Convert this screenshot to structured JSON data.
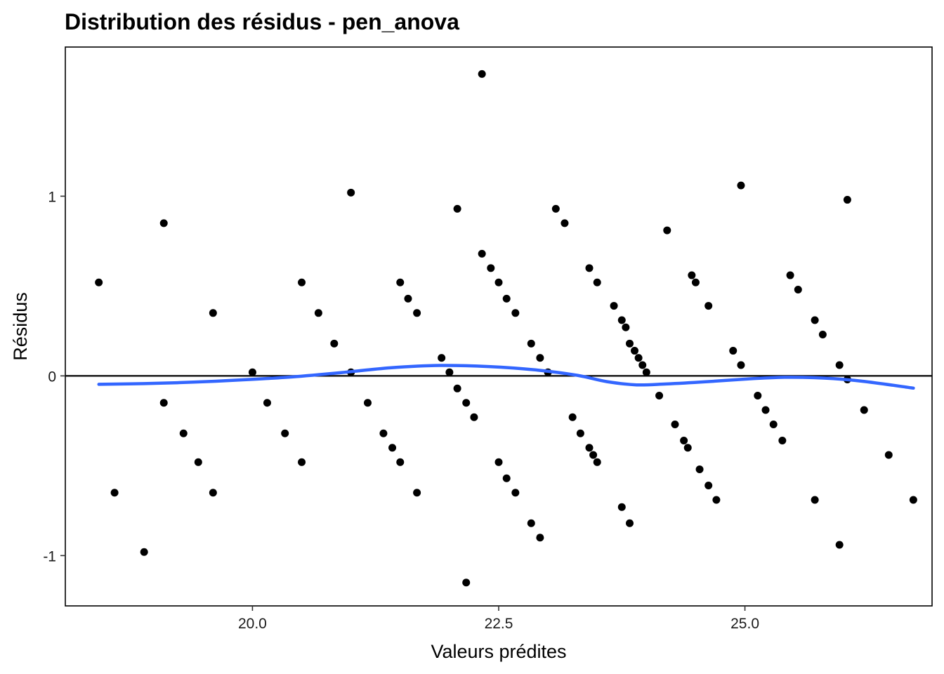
{
  "chart_data": {
    "type": "scatter",
    "title": "Distribution des résidus - pen_anova",
    "xlabel": "Valeurs prédites",
    "ylabel": "Résidus",
    "xlim": [
      18.1,
      26.9
    ],
    "ylim": [
      -1.28,
      1.83
    ],
    "xticks": [
      20.0,
      22.5,
      25.0
    ],
    "xtick_labels": [
      "20.0",
      "22.5",
      "25.0"
    ],
    "yticks": [
      -1,
      0,
      1
    ],
    "ytick_labels": [
      "-1",
      "0",
      "1"
    ],
    "grid": false,
    "reference_line_y": 0,
    "points": [
      {
        "x": 18.44,
        "y": 0.52
      },
      {
        "x": 18.6,
        "y": -0.65
      },
      {
        "x": 18.9,
        "y": -0.98
      },
      {
        "x": 19.1,
        "y": 0.85
      },
      {
        "x": 19.1,
        "y": -0.15
      },
      {
        "x": 19.3,
        "y": -0.32
      },
      {
        "x": 19.45,
        "y": -0.48
      },
      {
        "x": 19.6,
        "y": 0.35
      },
      {
        "x": 19.6,
        "y": -0.65
      },
      {
        "x": 20.0,
        "y": 0.02
      },
      {
        "x": 20.15,
        "y": -0.15
      },
      {
        "x": 20.33,
        "y": -0.32
      },
      {
        "x": 20.5,
        "y": 0.52
      },
      {
        "x": 20.5,
        "y": -0.48
      },
      {
        "x": 20.67,
        "y": 0.35
      },
      {
        "x": 20.83,
        "y": 0.18
      },
      {
        "x": 21.0,
        "y": 1.02
      },
      {
        "x": 21.0,
        "y": 0.02
      },
      {
        "x": 21.17,
        "y": -0.15
      },
      {
        "x": 21.33,
        "y": -0.32
      },
      {
        "x": 21.42,
        "y": -0.4
      },
      {
        "x": 21.5,
        "y": 0.52
      },
      {
        "x": 21.5,
        "y": -0.48
      },
      {
        "x": 21.58,
        "y": 0.43
      },
      {
        "x": 21.67,
        "y": 0.35
      },
      {
        "x": 21.67,
        "y": -0.65
      },
      {
        "x": 21.92,
        "y": 0.1
      },
      {
        "x": 22.0,
        "y": 0.02
      },
      {
        "x": 22.08,
        "y": 0.93
      },
      {
        "x": 22.08,
        "y": -0.07
      },
      {
        "x": 22.17,
        "y": -0.15
      },
      {
        "x": 22.17,
        "y": -1.15
      },
      {
        "x": 22.25,
        "y": -0.23
      },
      {
        "x": 22.33,
        "y": 1.68
      },
      {
        "x": 22.33,
        "y": 0.68
      },
      {
        "x": 22.42,
        "y": 0.6
      },
      {
        "x": 22.5,
        "y": 0.52
      },
      {
        "x": 22.5,
        "y": -0.48
      },
      {
        "x": 22.58,
        "y": 0.43
      },
      {
        "x": 22.58,
        "y": -0.57
      },
      {
        "x": 22.67,
        "y": 0.35
      },
      {
        "x": 22.67,
        "y": -0.65
      },
      {
        "x": 22.83,
        "y": 0.18
      },
      {
        "x": 22.83,
        "y": -0.82
      },
      {
        "x": 22.92,
        "y": 0.1
      },
      {
        "x": 22.92,
        "y": -0.9
      },
      {
        "x": 23.0,
        "y": 0.02
      },
      {
        "x": 23.08,
        "y": 0.93
      },
      {
        "x": 23.17,
        "y": 0.85
      },
      {
        "x": 23.25,
        "y": -0.23
      },
      {
        "x": 23.33,
        "y": -0.32
      },
      {
        "x": 23.42,
        "y": 0.6
      },
      {
        "x": 23.42,
        "y": -0.4
      },
      {
        "x": 23.46,
        "y": -0.44
      },
      {
        "x": 23.5,
        "y": 0.52
      },
      {
        "x": 23.5,
        "y": -0.48
      },
      {
        "x": 23.67,
        "y": 0.39
      },
      {
        "x": 23.75,
        "y": 0.31
      },
      {
        "x": 23.75,
        "y": -0.73
      },
      {
        "x": 23.79,
        "y": 0.27
      },
      {
        "x": 23.83,
        "y": 0.18
      },
      {
        "x": 23.83,
        "y": -0.82
      },
      {
        "x": 23.88,
        "y": 0.14
      },
      {
        "x": 23.92,
        "y": 0.1
      },
      {
        "x": 23.96,
        "y": 0.06
      },
      {
        "x": 24.0,
        "y": 0.02
      },
      {
        "x": 24.13,
        "y": -0.11
      },
      {
        "x": 24.21,
        "y": 0.81
      },
      {
        "x": 24.29,
        "y": -0.27
      },
      {
        "x": 24.38,
        "y": -0.36
      },
      {
        "x": 24.42,
        "y": -0.4
      },
      {
        "x": 24.46,
        "y": 0.56
      },
      {
        "x": 24.5,
        "y": 0.52
      },
      {
        "x": 24.54,
        "y": -0.52
      },
      {
        "x": 24.63,
        "y": 0.39
      },
      {
        "x": 24.63,
        "y": -0.61
      },
      {
        "x": 24.71,
        "y": -0.69
      },
      {
        "x": 24.88,
        "y": 0.14
      },
      {
        "x": 24.96,
        "y": 1.06
      },
      {
        "x": 24.96,
        "y": 0.06
      },
      {
        "x": 25.13,
        "y": -0.11
      },
      {
        "x": 25.21,
        "y": -0.19
      },
      {
        "x": 25.29,
        "y": -0.27
      },
      {
        "x": 25.38,
        "y": -0.36
      },
      {
        "x": 25.46,
        "y": 0.56
      },
      {
        "x": 25.54,
        "y": 0.48
      },
      {
        "x": 25.71,
        "y": 0.31
      },
      {
        "x": 25.71,
        "y": -0.69
      },
      {
        "x": 25.79,
        "y": 0.23
      },
      {
        "x": 25.96,
        "y": 0.06
      },
      {
        "x": 25.96,
        "y": -0.94
      },
      {
        "x": 26.04,
        "y": 0.98
      },
      {
        "x": 26.04,
        "y": -0.02
      },
      {
        "x": 26.21,
        "y": -0.19
      },
      {
        "x": 26.46,
        "y": -0.44
      },
      {
        "x": 26.71,
        "y": -0.69
      }
    ],
    "smooth_line": {
      "color": "#3366FF",
      "x": [
        18.44,
        18.9,
        19.4,
        19.9,
        20.4,
        20.9,
        21.4,
        21.9,
        22.4,
        22.9,
        23.3,
        23.6,
        23.9,
        24.2,
        24.6,
        25.0,
        25.4,
        25.8,
        26.2,
        26.71
      ],
      "y": [
        -0.047,
        -0.043,
        -0.035,
        -0.022,
        -0.006,
        0.018,
        0.045,
        0.058,
        0.052,
        0.032,
        0.003,
        -0.032,
        -0.05,
        -0.045,
        -0.033,
        -0.018,
        -0.008,
        -0.012,
        -0.03,
        -0.068
      ]
    }
  }
}
